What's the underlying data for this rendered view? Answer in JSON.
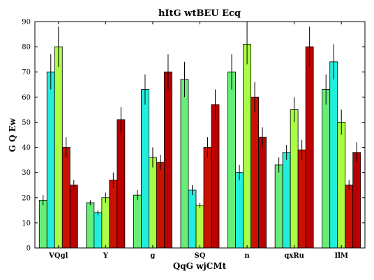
{
  "chart_data": {
    "type": "bar",
    "title": "hItG wtBEU Ecq",
    "xlabel": "QqG wjCMt",
    "ylabel": "G Q   Ew",
    "ylim": [
      0,
      90
    ],
    "yticks": [
      0,
      10,
      20,
      30,
      40,
      50,
      60,
      70,
      80,
      90
    ],
    "grid": false,
    "categories": [
      "VQgl",
      "Y",
      "g",
      "SQ",
      "n",
      "qxRu",
      "IlM"
    ],
    "series": [
      {
        "color": "#66ee77",
        "values": [
          19,
          18,
          21,
          67,
          70,
          33,
          63
        ],
        "errors": [
          2,
          1,
          2,
          7,
          7,
          3,
          6
        ]
      },
      {
        "color": "#22eedd",
        "values": [
          70,
          14,
          63,
          23,
          30,
          38,
          74
        ],
        "errors": [
          7,
          1,
          6,
          2,
          3,
          3,
          7
        ]
      },
      {
        "color": "#aaff44",
        "values": [
          80,
          20,
          36,
          17,
          81,
          55,
          50
        ],
        "errors": [
          8,
          2,
          4,
          1,
          8,
          5,
          5
        ]
      },
      {
        "color": "#cc1100",
        "values": [
          40,
          27,
          34,
          40,
          60,
          39,
          25
        ],
        "errors": [
          4,
          3,
          3,
          4,
          6,
          4,
          2
        ]
      },
      {
        "color": "#bb0000",
        "values": [
          25,
          51,
          70,
          57,
          44,
          80,
          38
        ],
        "errors": [
          2,
          5,
          7,
          6,
          4,
          8,
          4
        ]
      }
    ]
  }
}
